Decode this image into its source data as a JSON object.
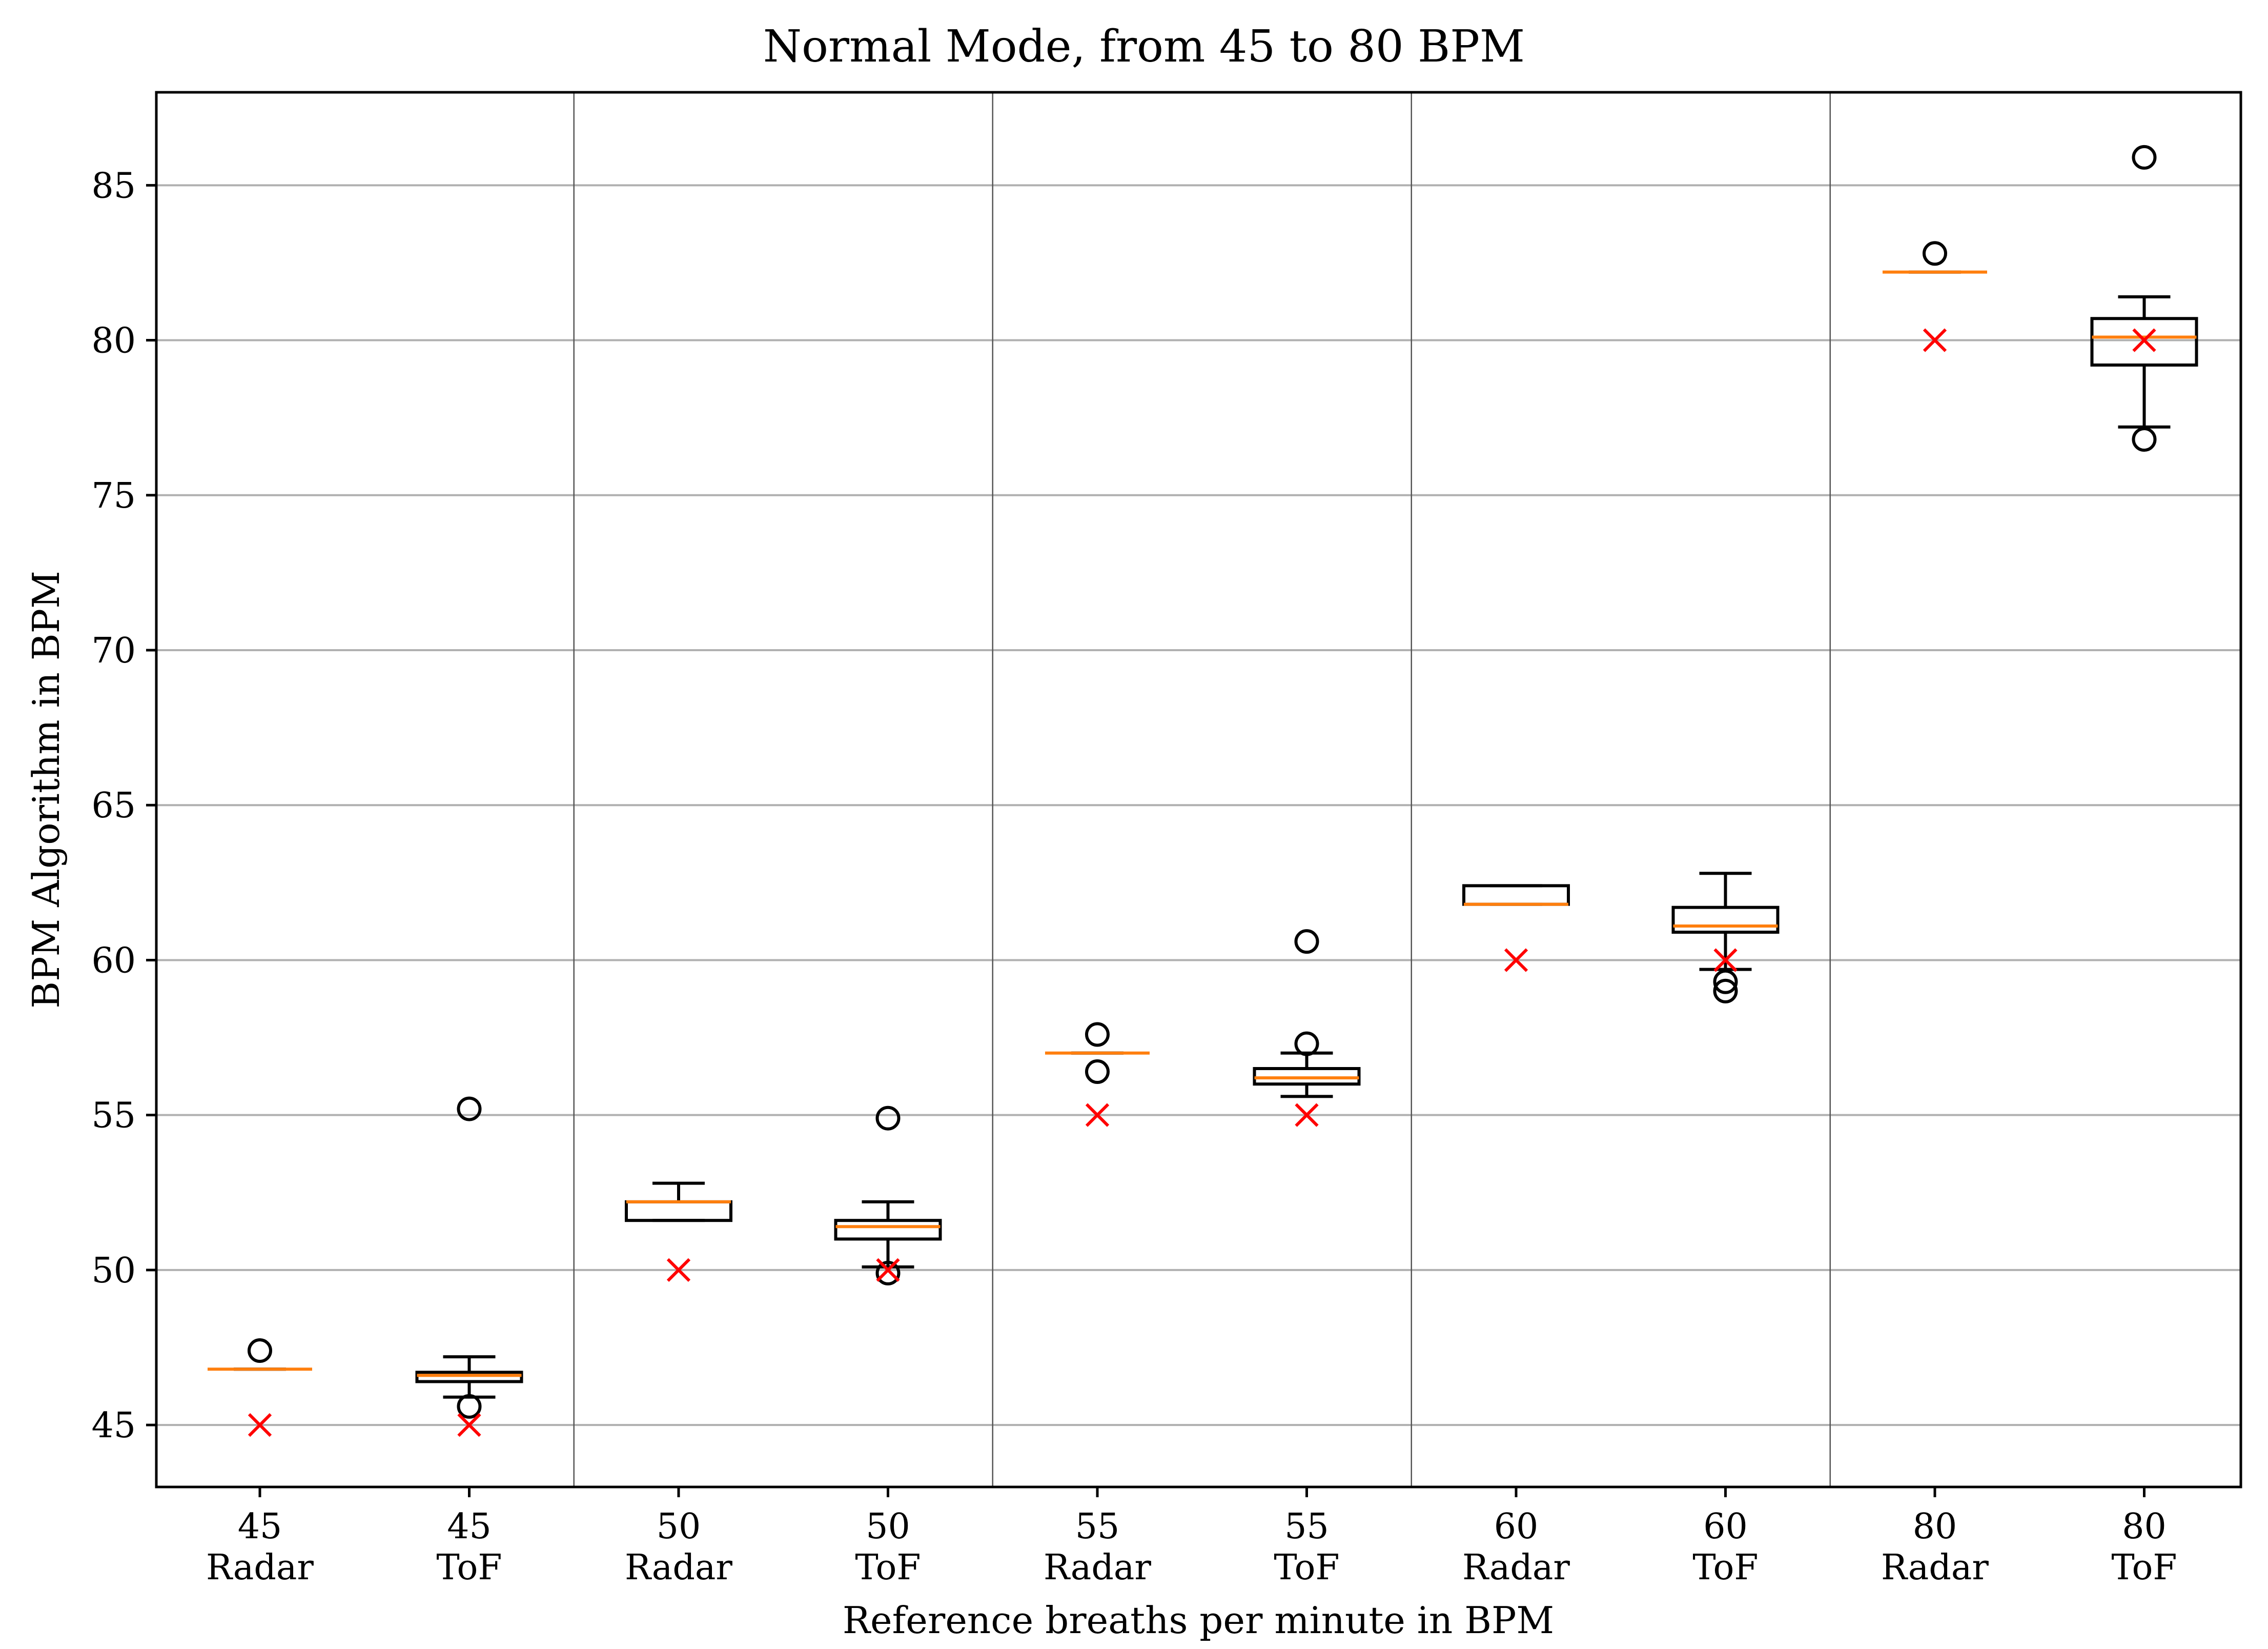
{
  "chart_data": {
    "type": "boxplot",
    "title": "Normal Mode, from 45 to 80 BPM",
    "xlabel": "Reference breaths per minute in BPM",
    "ylabel": "BPM Algorithm in BPM",
    "ylim": [
      43,
      88
    ],
    "yticks": [
      45,
      50,
      55,
      60,
      65,
      70,
      75,
      80,
      85
    ],
    "grid": "horizontal",
    "colors": {
      "box": "#000000",
      "median": "#ff7f0e",
      "reference_marker": "#ff0000",
      "grid": "#b0b0b0"
    },
    "groups": [
      {
        "reference": "45",
        "sensor": "Radar",
        "reference_bpm": 45,
        "whislo": 46.8,
        "q1": 46.8,
        "med": 46.8,
        "q3": 46.8,
        "whishi": 46.8,
        "fliers": [
          47.4
        ]
      },
      {
        "reference": "45",
        "sensor": "ToF",
        "reference_bpm": 45,
        "whislo": 45.9,
        "q1": 46.4,
        "med": 46.6,
        "q3": 46.7,
        "whishi": 47.2,
        "fliers": [
          55.2,
          45.6
        ]
      },
      {
        "reference": "50",
        "sensor": "Radar",
        "reference_bpm": 50,
        "whislo": 51.6,
        "q1": 51.6,
        "med": 52.2,
        "q3": 52.2,
        "whishi": 52.8,
        "fliers": []
      },
      {
        "reference": "50",
        "sensor": "ToF",
        "reference_bpm": 50,
        "whislo": 50.1,
        "q1": 51.0,
        "med": 51.4,
        "q3": 51.6,
        "whishi": 52.2,
        "fliers": [
          54.9,
          49.9
        ]
      },
      {
        "reference": "55",
        "sensor": "Radar",
        "reference_bpm": 55,
        "whislo": 57.0,
        "q1": 57.0,
        "med": 57.0,
        "q3": 57.0,
        "whishi": 57.0,
        "fliers": [
          57.6,
          56.4
        ]
      },
      {
        "reference": "55",
        "sensor": "ToF",
        "reference_bpm": 55,
        "whislo": 55.6,
        "q1": 56.0,
        "med": 56.2,
        "q3": 56.5,
        "whishi": 57.0,
        "fliers": [
          60.6,
          57.3
        ]
      },
      {
        "reference": "60",
        "sensor": "Radar",
        "reference_bpm": 60,
        "whislo": 61.8,
        "q1": 61.8,
        "med": 61.8,
        "q3": 62.4,
        "whishi": 62.4,
        "fliers": []
      },
      {
        "reference": "60",
        "sensor": "ToF",
        "reference_bpm": 60,
        "whislo": 59.7,
        "q1": 60.9,
        "med": 61.1,
        "q3": 61.7,
        "whishi": 62.8,
        "fliers": [
          59.3,
          59.0
        ]
      },
      {
        "reference": "80",
        "sensor": "Radar",
        "reference_bpm": 80,
        "whislo": 82.2,
        "q1": 82.2,
        "med": 82.2,
        "q3": 82.2,
        "whishi": 82.2,
        "fliers": [
          82.8
        ]
      },
      {
        "reference": "80",
        "sensor": "ToF",
        "reference_bpm": 80,
        "whislo": 77.2,
        "q1": 79.2,
        "med": 80.1,
        "q3": 80.7,
        "whishi": 81.4,
        "fliers": [
          85.9,
          76.8
        ]
      }
    ]
  }
}
